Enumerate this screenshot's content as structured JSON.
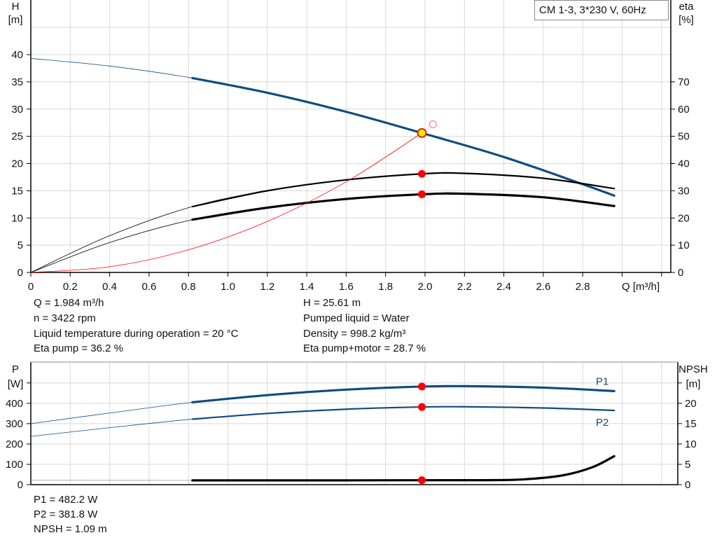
{
  "chart_data": [
    {
      "type": "line",
      "title": "CM 1-3, 3*230 V, 60Hz",
      "xlabel": "Q [m³/h]",
      "ylabel": "H\n[m]",
      "ylabel_left_name": "H",
      "ylabel_left_unit": "[m]",
      "ylabel_right_name": "eta",
      "ylabel_right_unit": "[%]",
      "xlim": [
        0,
        3.2
      ],
      "ylim": [
        0,
        45
      ],
      "y2lim": [
        0,
        90
      ],
      "xticks": [
        "0",
        "0.2",
        "0.4",
        "0.6",
        "0.8",
        "1.0",
        "1.2",
        "1.4",
        "1.6",
        "1.8",
        "2.0",
        "2.2",
        "2.4",
        "2.6",
        "2.8"
      ],
      "yticks": [
        "0",
        "5",
        "10",
        "15",
        "20",
        "25",
        "30",
        "35",
        "40"
      ],
      "y2ticks": [
        "0",
        "10",
        "20",
        "30",
        "40",
        "50",
        "60",
        "70"
      ],
      "grid": true,
      "series": [
        {
          "axis": "H",
          "color": "#0f4c81",
          "x": [
            0,
            0.4,
            0.82,
            1.2,
            1.6,
            1.984,
            2.4,
            2.8,
            2.96
          ],
          "y": [
            39.3,
            37.9,
            35.7,
            33.0,
            29.5,
            25.61,
            21.2,
            16.2,
            14.1
          ]
        },
        {
          "axis": "eta",
          "color": "#000000",
          "x": [
            0,
            0.4,
            0.82,
            1.2,
            1.6,
            1.984,
            2.2,
            2.6,
            2.96
          ],
          "y": [
            0,
            13.5,
            24.2,
            30.0,
            34.0,
            36.2,
            36.4,
            34.6,
            30.8
          ]
        },
        {
          "axis": "eta",
          "color": "#000000",
          "x": [
            0,
            0.4,
            0.82,
            1.2,
            1.6,
            1.984,
            2.2,
            2.6,
            2.96
          ],
          "y": [
            0,
            11.0,
            19.4,
            23.8,
            27.0,
            28.7,
            28.9,
            27.6,
            24.4
          ]
        },
        {
          "axis": "H",
          "color": "#ff0000",
          "kind": "system",
          "x": [
            0,
            0.4,
            0.8,
            1.2,
            1.6,
            1.984
          ],
          "y": [
            0,
            1.04,
            4.16,
            9.37,
            16.65,
            25.61
          ]
        }
      ],
      "operating_points": [
        {
          "axis": "H",
          "x": 1.984,
          "y": 25.61
        },
        {
          "axis": "eta",
          "x": 1.984,
          "y": 36.2
        },
        {
          "axis": "eta",
          "x": 1.984,
          "y": 28.7
        }
      ],
      "open_marker": {
        "x": 2.04,
        "y": 27.2
      }
    },
    {
      "type": "line",
      "ylabel_left_name": "P",
      "ylabel_left_unit": "[W]",
      "ylabel_right_name": "NPSH",
      "ylabel_right_unit": "[m]",
      "xlim": [
        0,
        3.2
      ],
      "ylim": [
        0,
        500
      ],
      "y2lim": [
        0,
        25
      ],
      "yticks": [
        "0",
        "100",
        "200",
        "300",
        "400"
      ],
      "y2ticks": [
        "0",
        "5",
        "10",
        "15",
        "20"
      ],
      "grid": true,
      "series": [
        {
          "name": "P1",
          "axis": "P",
          "color": "#0f4c81",
          "x": [
            0,
            0.4,
            0.82,
            1.2,
            1.6,
            1.984,
            2.2,
            2.6,
            2.96
          ],
          "y": [
            300,
            352,
            405,
            440,
            467,
            482.2,
            484,
            477,
            460
          ]
        },
        {
          "name": "P2",
          "axis": "P",
          "color": "#0f4c81",
          "x": [
            0,
            0.4,
            0.82,
            1.2,
            1.6,
            1.984,
            2.2,
            2.6,
            2.96
          ],
          "y": [
            237,
            280,
            322,
            350,
            371,
            381.8,
            383,
            377,
            365
          ]
        },
        {
          "axis": "NPSH",
          "color": "#000000",
          "x": [
            0,
            0.82,
            1.6,
            1.984,
            2.3,
            2.5,
            2.7,
            2.85,
            2.96
          ],
          "y": [
            1.1,
            1.05,
            1.06,
            1.09,
            1.1,
            1.3,
            2.3,
            4.3,
            7.0
          ]
        }
      ],
      "operating_points": [
        {
          "axis": "P",
          "x": 1.984,
          "y": 482.2
        },
        {
          "axis": "P",
          "x": 1.984,
          "y": 381.8
        },
        {
          "axis": "NPSH",
          "x": 1.984,
          "y": 1.09
        }
      ]
    }
  ],
  "info_top_left": [
    "Q = 1.984 m³/h",
    "n = 3422 rpm",
    "Liquid temperature during operation = 20 °C",
    "Eta pump = 36.2 %"
  ],
  "info_top_right": [
    "H = 25.61 m",
    "Pumped liquid = Water",
    "Density = 998.2 kg/m³",
    "Eta pump+motor = 28.7 %"
  ],
  "info_bottom": [
    "P1 = 482.2 W",
    "P2 = 381.8 W",
    "NPSH = 1.09 m"
  ]
}
